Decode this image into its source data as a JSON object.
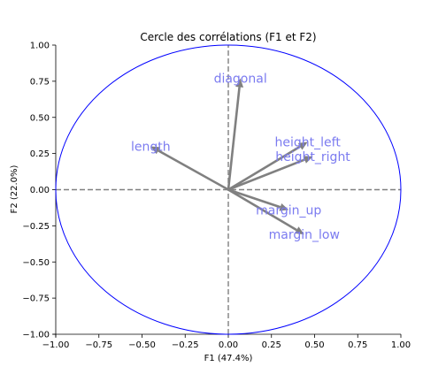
{
  "chart_data": {
    "type": "scatter",
    "title": "Cercle des corrélations (F1 et F2)",
    "xlabel": "F1 (47.4%)",
    "ylabel": "F2 (22.0%)",
    "xlim": [
      -1.0,
      1.0
    ],
    "ylim": [
      -1.0,
      1.0
    ],
    "xticks": [
      "−1.00",
      "−0.75",
      "−0.50",
      "−0.25",
      "0.00",
      "0.25",
      "0.50",
      "0.75",
      "1.00"
    ],
    "yticks": [
      "−1.00",
      "−0.75",
      "−0.50",
      "−0.25",
      "0.00",
      "0.25",
      "0.50",
      "0.75",
      "1.00"
    ],
    "grid": false,
    "circle_radius": 1.0,
    "arrows": [
      {
        "label": "diagonal",
        "x": 0.07,
        "y": 0.77
      },
      {
        "label": "length",
        "x": -0.45,
        "y": 0.3
      },
      {
        "label": "height_left",
        "x": 0.46,
        "y": 0.33
      },
      {
        "label": "height_right",
        "x": 0.49,
        "y": 0.23
      },
      {
        "label": "margin_up",
        "x": 0.35,
        "y": -0.14
      },
      {
        "label": "margin_low",
        "x": 0.44,
        "y": -0.31
      }
    ],
    "colors": {
      "circle": "#0000ff",
      "arrow": "#808080",
      "label": "#7b7bf0",
      "dashed_axes": "#808080"
    }
  }
}
